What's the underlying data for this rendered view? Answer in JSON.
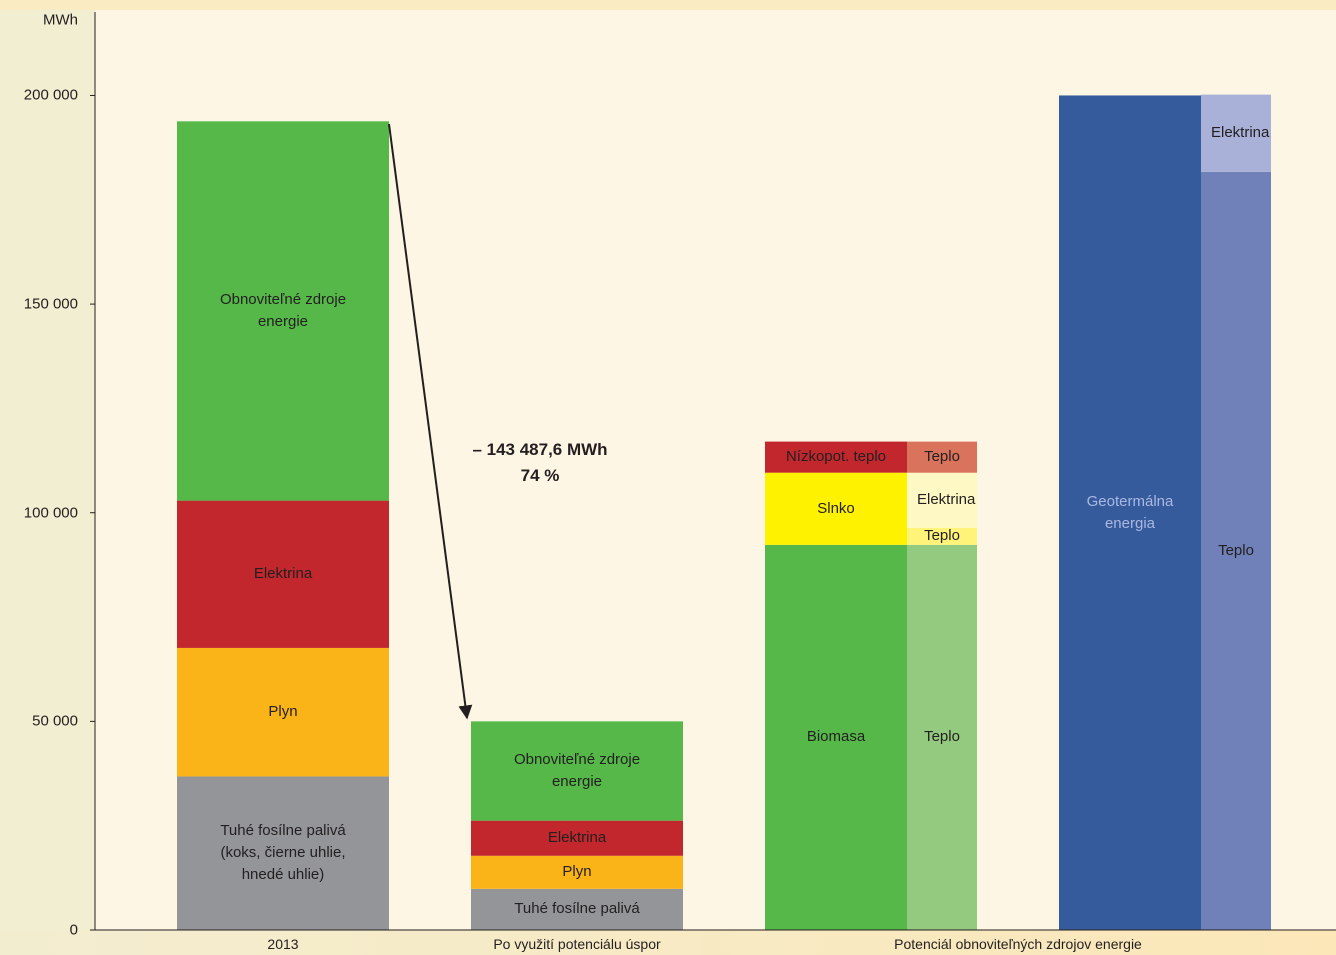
{
  "chart_data": {
    "type": "stacked_bar",
    "y_label": "MWh",
    "ylim": [
      0,
      220000
    ],
    "yticks": [
      0,
      {
        "value": 50000,
        "label": "50 000"
      },
      {
        "value": 100000,
        "label": "100 000"
      },
      {
        "value": 150000,
        "label": "150 000"
      },
      {
        "value": 200000,
        "label": "200 000"
      }
    ],
    "annotation": [
      "– 143 487,6 MWh",
      "74 %"
    ],
    "categories": [
      {
        "label": "2013",
        "stacks": [
          {
            "segments": [
              {
                "label": "Tuhé fosílne palivá (koks, čierne uhlie, hnedé uhlie)",
                "value": 36800,
                "color": "#939598"
              },
              {
                "label": "Plyn",
                "value": 30800,
                "color": "#fbb418"
              },
              {
                "label": "Elektrina",
                "value": 35300,
                "color": "#c1272d"
              },
              {
                "label": "Obnoviteľné zdroje energie",
                "value": 90900,
                "color": "#55b848"
              }
            ]
          }
        ]
      },
      {
        "label": "Po využití potenciálu úspor",
        "stacks": [
          {
            "segments": [
              {
                "label": "Tuhé fosílne palivá",
                "value": 9860,
                "color": "#939598"
              },
              {
                "label": "Plyn",
                "value": 7930,
                "color": "#fbb418"
              },
              {
                "label": "Elektrina",
                "value": 8410,
                "color": "#c1272d"
              },
              {
                "label": "Obnoviteľné zdroje energie",
                "value": 23800,
                "color": "#55b848"
              }
            ]
          }
        ]
      },
      {
        "label": "Potenciál obnoviteľných zdrojov energie",
        "stacks": [
          {
            "segments": [
              {
                "label": "Biomasa",
                "value": 92300,
                "color": "#55b848"
              },
              {
                "label": "Slnko",
                "value": 17300,
                "color": "#fff200"
              },
              {
                "label": "Nízkopot. teplo",
                "value": 7450,
                "color": "#c1272d"
              }
            ]
          },
          {
            "segments": [
              {
                "label": "Teplo",
                "value": 92300,
                "color": "#94ca80"
              },
              {
                "label": "Teplo",
                "value": 4090,
                "color": "#fff37a"
              },
              {
                "label": "Elektrina",
                "value": 13200,
                "color": "#fef9c4"
              },
              {
                "label": "Teplo",
                "value": 7450,
                "color": "#d9735c"
              }
            ]
          },
          {
            "segments": [
              {
                "label": "Geotermálna energia",
                "value": 200000,
                "color": "#365b9c",
                "label_color": "#aab8e0"
              }
            ]
          },
          {
            "segments": [
              {
                "label": "Teplo",
                "value": 181700,
                "color": "#7080b8"
              },
              {
                "label": "Elektrina",
                "value": 18500,
                "color": "#a9b1d8"
              }
            ]
          }
        ]
      }
    ]
  }
}
